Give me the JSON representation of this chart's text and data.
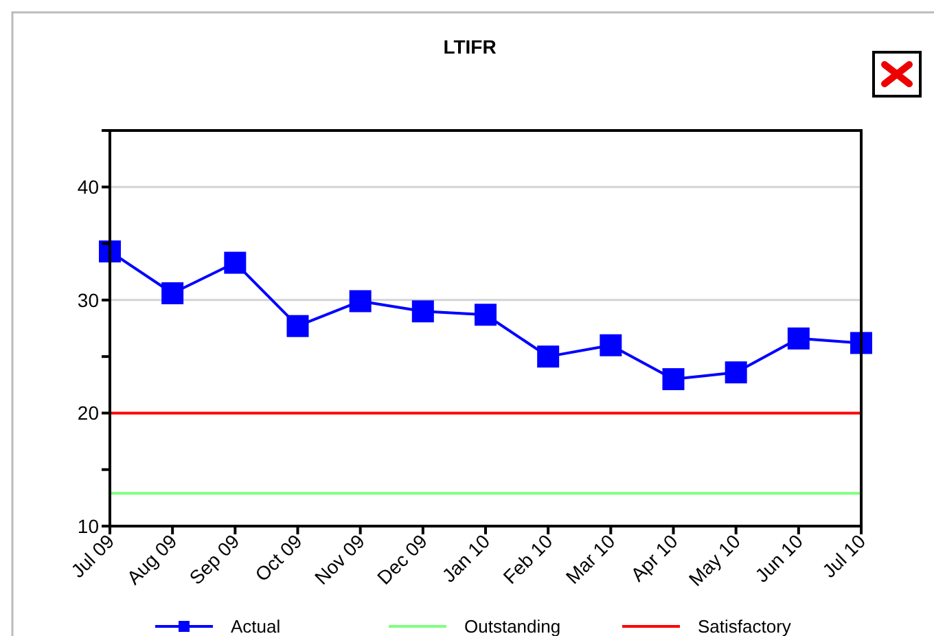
{
  "chart_data": {
    "type": "line",
    "title": "LTIFR",
    "categories": [
      "Jul 09",
      "Aug 09",
      "Sep 09",
      "Oct 09",
      "Nov 09",
      "Dec 09",
      "Jan 10",
      "Feb 10",
      "Mar 10",
      "Apr 10",
      "May 10",
      "Jun 10",
      "Jul 10"
    ],
    "series": [
      {
        "name": "Actual",
        "color": "#0000ff",
        "marker": "square",
        "values": [
          34.3,
          30.6,
          33.3,
          27.7,
          29.9,
          29.0,
          28.7,
          25.0,
          26.0,
          23.0,
          23.6,
          26.6,
          26.2
        ]
      },
      {
        "name": "Outstanding",
        "color": "#80ff80",
        "marker": "none",
        "values": [
          12.9,
          12.9,
          12.9,
          12.9,
          12.9,
          12.9,
          12.9,
          12.9,
          12.9,
          12.9,
          12.9,
          12.9,
          12.9
        ]
      },
      {
        "name": "Satisfactory",
        "color": "#ff0000",
        "marker": "none",
        "values": [
          20,
          20,
          20,
          20,
          20,
          20,
          20,
          20,
          20,
          20,
          20,
          20,
          20
        ]
      }
    ],
    "ylim": [
      10,
      45
    ],
    "yticks": [
      10,
      {
        "value": 15,
        "label": null
      },
      20,
      {
        "value": 25,
        "label": null
      },
      30,
      {
        "value": 35,
        "label": null
      },
      40,
      {
        "value": 45,
        "label": null
      }
    ],
    "grid": "y",
    "legend": "bottom"
  }
}
